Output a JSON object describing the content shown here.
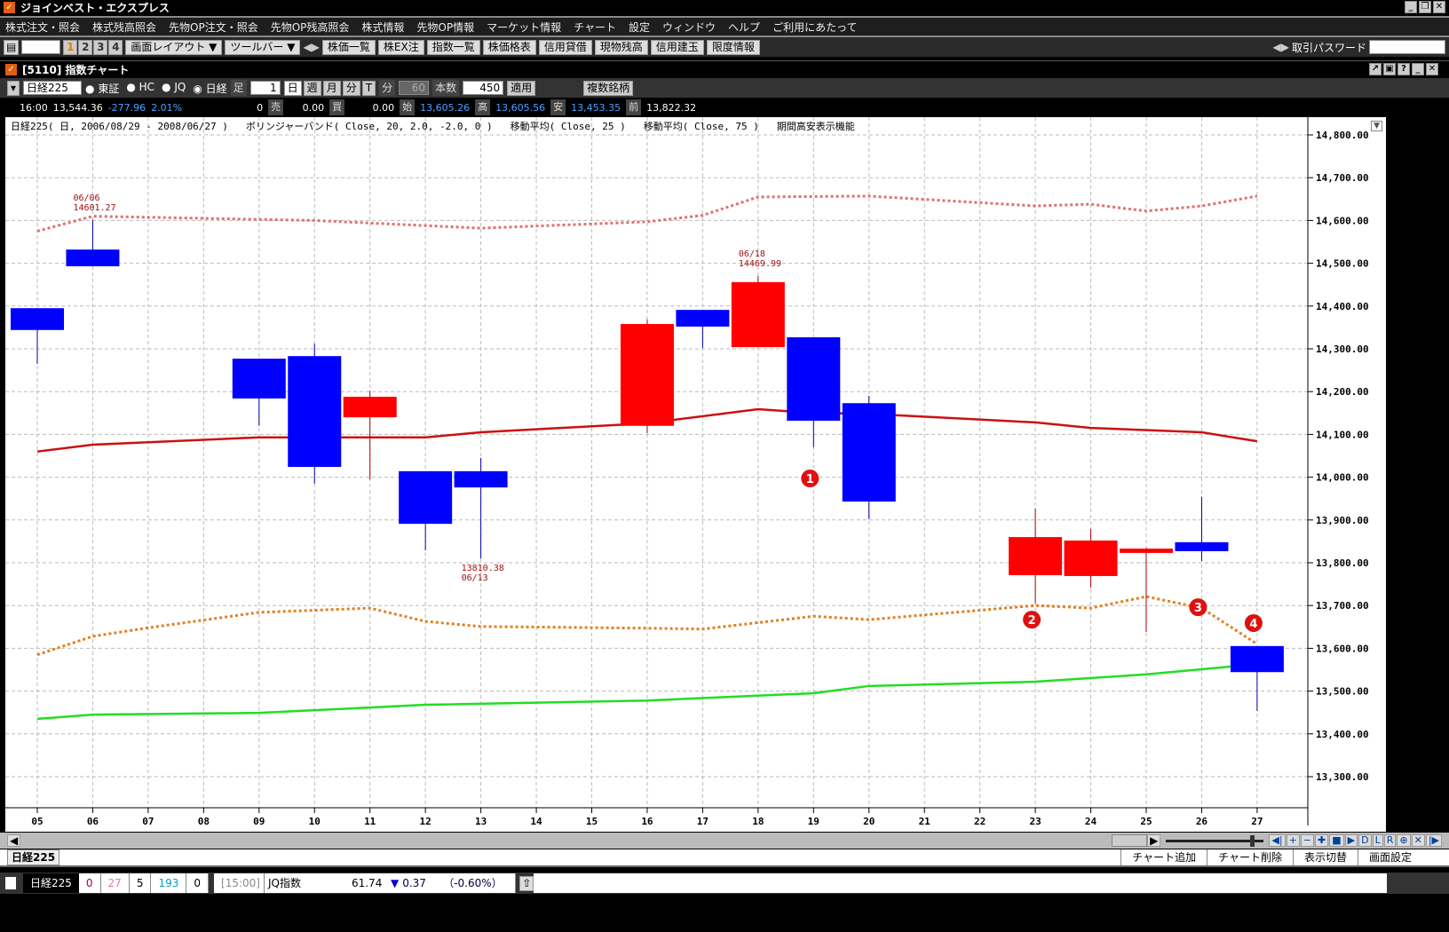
{
  "app": {
    "title": "ジョインベスト・エクスプレス"
  },
  "menu": [
    "株式注文・照会",
    "株式残高照会",
    "先物OP注文・照会",
    "先物OP残高照会",
    "株式情報",
    "先物OP情報",
    "マーケット情報",
    "チャート",
    "設定",
    "ウィンドウ",
    "ヘルプ",
    "ご利用にあたって"
  ],
  "toolbar": {
    "pages": [
      "1",
      "2",
      "3",
      "4"
    ],
    "layout": "画面レイアウト ▼",
    "toolbar": "ツールバー ▼",
    "buttons": [
      "株価一覧",
      "株EX注",
      "指数一覧",
      "株価格表",
      "信用貸借",
      "現物残高",
      "信用建玉",
      "限度情報"
    ],
    "password_label": "取引パスワード"
  },
  "window": {
    "title": "[5110] 指数チャート"
  },
  "controls": {
    "symbol": "日経225",
    "markets": [
      "東証",
      "HC",
      "JQ",
      "日経"
    ],
    "selected_market": "日経",
    "ashi_label": "足",
    "ashi_value": "1",
    "periods": [
      "日",
      "週",
      "月",
      "分",
      "T"
    ],
    "fun_label": "分",
    "fun_value": "60",
    "count_label": "本数",
    "count_value": "450",
    "apply": "適用",
    "multi": "複数銘柄"
  },
  "info": {
    "time": "16:00",
    "price": "13,544.36",
    "change": "-277.96",
    "pct": "2.01%",
    "sell_qty": "0",
    "sell_label": "売",
    "buy_val": "0.00",
    "buy_label": "買",
    "v3": "0.00",
    "open_label": "始",
    "open": "13,605.26",
    "high_label": "高",
    "high": "13,605.56",
    "low_label": "安",
    "low": "13,453.35",
    "prev_label": "前",
    "prev": "13,822.32"
  },
  "chart_header": [
    "日経225( 日, 2006/08/29 - 2008/06/27 )",
    "ボリンジャーバンド( Close, 20, 2.0, -2.0, 0 )",
    "移動平均( Close, 25 )",
    "移動平均( Close, 75 )",
    "期間高安表示機能"
  ],
  "chart_data": {
    "type": "candlestick",
    "up_color": "#ff0000",
    "down_color": "#0000ff",
    "ylim": [
      13200,
      14850
    ],
    "yticks": [
      "14,800.00",
      "14,700.00",
      "14,600.00",
      "14,500.00",
      "14,400.00",
      "14,300.00",
      "14,200.00",
      "14,100.00",
      "14,000.00",
      "13,900.00",
      "13,800.00",
      "13,700.00",
      "13,600.00",
      "13,500.00",
      "13,400.00",
      "13,300.00"
    ],
    "xticks": [
      "05",
      "06",
      "07",
      "08",
      "09",
      "10",
      "11",
      "12",
      "13",
      "14",
      "15",
      "16",
      "17",
      "18",
      "19",
      "20",
      "21",
      "22",
      "23",
      "24",
      "25",
      "26",
      "27"
    ],
    "candles": [
      {
        "d": "05",
        "o": 14395,
        "h": 14395,
        "l": 14265,
        "c": 14344
      },
      {
        "d": "06",
        "o": 14532,
        "h": 14601.27,
        "l": 14493,
        "c": 14493
      },
      {
        "d": "09",
        "o": 14277,
        "h": 14277,
        "l": 14120,
        "c": 14184
      },
      {
        "d": "10",
        "o": 14283,
        "h": 14312,
        "l": 13985,
        "c": 14024
      },
      {
        "d": "11",
        "o": 14140,
        "h": 14202,
        "l": 13995,
        "c": 14188
      },
      {
        "d": "12",
        "o": 14014,
        "h": 14014,
        "l": 13829,
        "c": 13891
      },
      {
        "d": "13",
        "o": 14014,
        "h": 14045,
        "l": 13810.38,
        "c": 13976
      },
      {
        "d": "16",
        "o": 14120,
        "h": 14369,
        "l": 14103,
        "c": 14358
      },
      {
        "d": "17",
        "o": 14391,
        "h": 14391,
        "l": 14302,
        "c": 14352
      },
      {
        "d": "18",
        "o": 14304,
        "h": 14469.99,
        "l": 14304,
        "c": 14456
      },
      {
        "d": "19",
        "o": 14327,
        "h": 14327,
        "l": 14070,
        "c": 14132
      },
      {
        "d": "20",
        "o": 14173,
        "h": 14190,
        "l": 13902,
        "c": 13943
      },
      {
        "d": "23",
        "o": 13771,
        "h": 13927,
        "l": 13705,
        "c": 13860
      },
      {
        "d": "24",
        "o": 13769,
        "h": 13879,
        "l": 13742,
        "c": 13852
      },
      {
        "d": "25",
        "o": 13823,
        "h": 13835,
        "l": 13638,
        "c": 13833
      },
      {
        "d": "26",
        "o": 13848,
        "h": 13954,
        "l": 13804,
        "c": 13827
      },
      {
        "d": "27",
        "o": 13605.26,
        "h": 13605.56,
        "l": 13453.35,
        "c": 13544.36
      }
    ],
    "lines": [
      {
        "name": "bb_upper",
        "color": "#e07070",
        "style": "dotted",
        "points": [
          [
            "05",
            14575
          ],
          [
            "06",
            14610
          ],
          [
            "10",
            14600
          ],
          [
            "13",
            14582
          ],
          [
            "16",
            14597
          ],
          [
            "17",
            14612
          ],
          [
            "18",
            14655
          ],
          [
            "20",
            14657
          ],
          [
            "23",
            14634
          ],
          [
            "24",
            14638
          ],
          [
            "25",
            14622
          ],
          [
            "26",
            14634
          ],
          [
            "27",
            14657
          ]
        ]
      },
      {
        "name": "ma25",
        "color": "#cc1010",
        "style": "solid",
        "points": [
          [
            "05",
            14060
          ],
          [
            "06",
            14076
          ],
          [
            "09",
            14093
          ],
          [
            "12",
            14093
          ],
          [
            "13",
            14105
          ],
          [
            "16",
            14126
          ],
          [
            "18",
            14159
          ],
          [
            "19",
            14150
          ],
          [
            "20",
            14148
          ],
          [
            "23",
            14128
          ],
          [
            "24",
            14115
          ],
          [
            "26",
            14105
          ],
          [
            "27",
            14084
          ]
        ]
      },
      {
        "name": "bb_lower",
        "color": "#e08020",
        "style": "dotted",
        "points": [
          [
            "05",
            13585
          ],
          [
            "06",
            13628
          ],
          [
            "07",
            13648
          ],
          [
            "09",
            13684
          ],
          [
            "11",
            13694
          ],
          [
            "12",
            13663
          ],
          [
            "13",
            13651
          ],
          [
            "16",
            13647
          ],
          [
            "17",
            13645
          ],
          [
            "19",
            13675
          ],
          [
            "20",
            13667
          ],
          [
            "23",
            13700
          ],
          [
            "24",
            13694
          ],
          [
            "25",
            13721
          ],
          [
            "26",
            13694
          ],
          [
            "27",
            13610
          ]
        ]
      },
      {
        "name": "ma75",
        "color": "#22dd22",
        "style": "solid",
        "points": [
          [
            "05",
            13435
          ],
          [
            "06",
            13445
          ],
          [
            "09",
            13449
          ],
          [
            "12",
            13468
          ],
          [
            "16",
            13478
          ],
          [
            "19",
            13495
          ],
          [
            "20",
            13512
          ],
          [
            "23",
            13522
          ],
          [
            "25",
            13539
          ],
          [
            "27",
            13563
          ]
        ]
      }
    ],
    "hl_labels": [
      {
        "d": "06",
        "date": "06/06",
        "value": "14601.27",
        "pos": "above"
      },
      {
        "d": "13",
        "date": "06/13",
        "value": "13810.38",
        "pos": "below"
      },
      {
        "d": "18",
        "date": "06/18",
        "value": "14469.99",
        "pos": "above"
      }
    ],
    "markers": [
      {
        "d": "19",
        "v": 13997,
        "text": "1"
      },
      {
        "d": "23",
        "v": 13667,
        "text": "2"
      },
      {
        "d": "26",
        "v": 13696,
        "text": "3"
      },
      {
        "d": "27",
        "v": 13659,
        "text": "4"
      }
    ],
    "grid": true
  },
  "nav": {
    "buttons": [
      "◀|",
      "+",
      "−",
      "✚",
      "■",
      "▶",
      "D",
      "L",
      "R",
      "⊕",
      "✕",
      "|▶"
    ]
  },
  "tabs": {
    "active": "日経225",
    "right_buttons": [
      "チャート追加",
      "チャート削除",
      "表示切替",
      "画面設定"
    ]
  },
  "status": {
    "symbol": "日経225",
    "cells": [
      "0",
      "27",
      "5",
      "193",
      "0"
    ],
    "time": "[15:00]",
    "index": "JQ指数",
    "value": "61.74",
    "change": "0.37",
    "pct": "（-0.60%）"
  }
}
